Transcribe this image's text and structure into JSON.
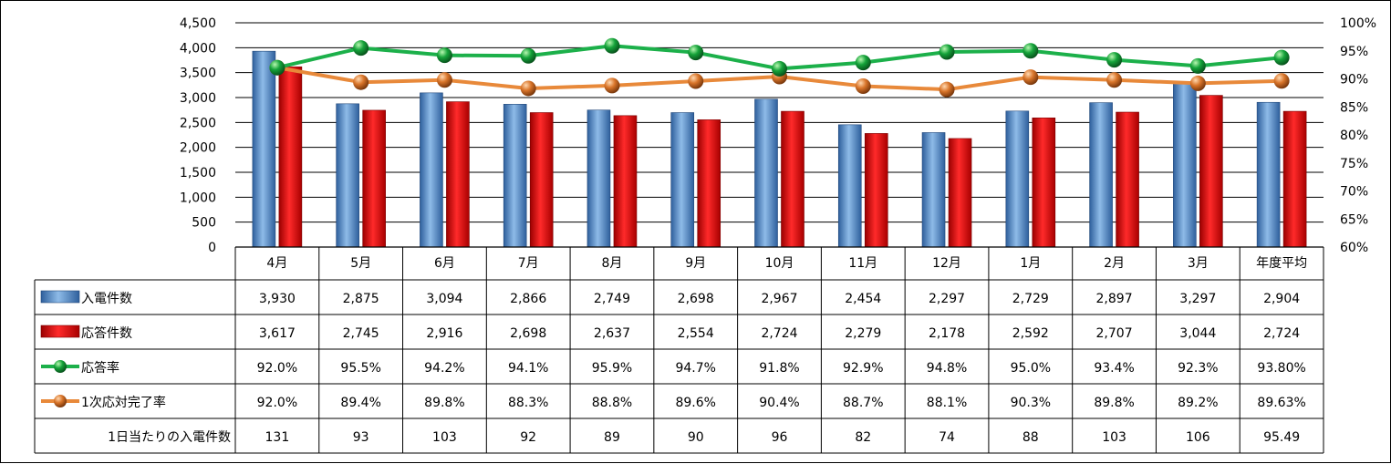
{
  "chart_data": {
    "type": "bar",
    "categories": [
      "4月",
      "5月",
      "6月",
      "7月",
      "8月",
      "9月",
      "10月",
      "11月",
      "12月",
      "1月",
      "2月",
      "3月",
      "年度平均"
    ],
    "left_axis": {
      "ylim": [
        0,
        4500
      ],
      "ticks": [
        "0",
        "500",
        "1,000",
        "1,500",
        "2,000",
        "2,500",
        "3,000",
        "3,500",
        "4,000",
        "4,500"
      ]
    },
    "right_axis": {
      "ylim": [
        60,
        100
      ],
      "ticks": [
        "60%",
        "65%",
        "70%",
        "75%",
        "80%",
        "85%",
        "90%",
        "95%",
        "100%"
      ]
    },
    "grid": true,
    "legend": "data-table-rows",
    "series": [
      {
        "name": "入電件数",
        "kind": "bar",
        "axis": "left",
        "color": "#4a86c8",
        "values": [
          3930,
          2875,
          3094,
          2866,
          2749,
          2698,
          2967,
          2454,
          2297,
          2729,
          2897,
          3297,
          2904
        ],
        "labels": [
          "3,930",
          "2,875",
          "3,094",
          "2,866",
          "2,749",
          "2,698",
          "2,967",
          "2,454",
          "2,297",
          "2,729",
          "2,897",
          "3,297",
          "2,904"
        ]
      },
      {
        "name": "応答件数",
        "kind": "bar",
        "axis": "left",
        "color": "#e60000",
        "values": [
          3617,
          2745,
          2916,
          2698,
          2637,
          2554,
          2724,
          2279,
          2178,
          2592,
          2707,
          3044,
          2724
        ],
        "labels": [
          "3,617",
          "2,745",
          "2,916",
          "2,698",
          "2,637",
          "2,554",
          "2,724",
          "2,279",
          "2,178",
          "2,592",
          "2,707",
          "3,044",
          "2,724"
        ]
      },
      {
        "name": "応答率",
        "kind": "line",
        "axis": "right",
        "color": "#1cb04a",
        "values": [
          92.0,
          95.5,
          94.2,
          94.1,
          95.9,
          94.7,
          91.8,
          92.9,
          94.8,
          95.0,
          93.4,
          92.3,
          93.8
        ],
        "labels": [
          "92.0%",
          "95.5%",
          "94.2%",
          "94.1%",
          "95.9%",
          "94.7%",
          "91.8%",
          "92.9%",
          "94.8%",
          "95.0%",
          "93.4%",
          "92.3%",
          "93.80%"
        ]
      },
      {
        "name": "1次応対完了率",
        "kind": "line",
        "axis": "right",
        "color": "#e8893a",
        "values": [
          92.0,
          89.4,
          89.8,
          88.3,
          88.8,
          89.6,
          90.4,
          88.7,
          88.1,
          90.3,
          89.8,
          89.2,
          89.63
        ],
        "labels": [
          "92.0%",
          "89.4%",
          "89.8%",
          "88.3%",
          "88.8%",
          "89.6%",
          "90.4%",
          "88.7%",
          "88.1%",
          "90.3%",
          "89.8%",
          "89.2%",
          "89.63%"
        ]
      },
      {
        "name": "1日当たりの入電件数",
        "kind": "table-only",
        "values": [
          131,
          93,
          103,
          92,
          89,
          90,
          96,
          82,
          74,
          88,
          103,
          106,
          95.49
        ],
        "labels": [
          "131",
          "93",
          "103",
          "92",
          "89",
          "90",
          "96",
          "82",
          "74",
          "88",
          "103",
          "106",
          "95.49"
        ]
      }
    ]
  }
}
